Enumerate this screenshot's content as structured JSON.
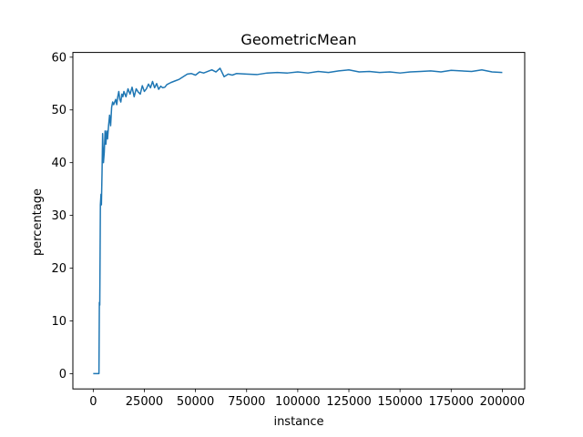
{
  "chart_data": {
    "type": "line",
    "title": "GeometricMean",
    "xlabel": "instance",
    "ylabel": "percentage",
    "xlim": [
      -9950,
      210950
    ],
    "ylim": [
      -2.9,
      60.9
    ],
    "xticks": [
      0,
      25000,
      50000,
      75000,
      100000,
      125000,
      150000,
      175000,
      200000
    ],
    "yticks": [
      0,
      10,
      20,
      30,
      40,
      50,
      60
    ],
    "grid": false,
    "legend": "none",
    "series": [
      {
        "color": "#1f77b4",
        "x": [
          0,
          1500,
          2800,
          3000,
          3200,
          3500,
          3800,
          4000,
          4300,
          4600,
          5000,
          5400,
          5800,
          6200,
          6600,
          7000,
          7500,
          8000,
          8500,
          9000,
          9500,
          10000,
          10500,
          11000,
          11500,
          12000,
          12500,
          13000,
          13500,
          14000,
          14500,
          15000,
          16000,
          17000,
          18000,
          19000,
          20000,
          21000,
          22000,
          23000,
          24000,
          25000,
          26000,
          27000,
          28000,
          29000,
          30000,
          31000,
          32000,
          33000,
          34000,
          35000,
          36000,
          38000,
          40000,
          42000,
          44000,
          46000,
          48000,
          50000,
          52000,
          54000,
          56000,
          58000,
          60000,
          62000,
          64000,
          66000,
          68000,
          70000,
          75000,
          80000,
          85000,
          90000,
          95000,
          100000,
          105000,
          110000,
          115000,
          120000,
          125000,
          130000,
          135000,
          140000,
          145000,
          150000,
          155000,
          160000,
          165000,
          170000,
          175000,
          180000,
          185000,
          190000,
          195000,
          200000
        ],
        "y": [
          0,
          0,
          0,
          13.5,
          13,
          32,
          34,
          32,
          38,
          45.5,
          40,
          42,
          46,
          43.5,
          46,
          44.5,
          47,
          49,
          47,
          50.5,
          51.5,
          51,
          51.5,
          52,
          51,
          52.5,
          53.5,
          52,
          51.5,
          53,
          52.5,
          53.5,
          52.5,
          54,
          53,
          54.3,
          52.5,
          54,
          53.4,
          53,
          54.6,
          53.5,
          54,
          54.9,
          54.2,
          55.4,
          54.2,
          55,
          53.9,
          54.5,
          54.2,
          54.3,
          54.8,
          55.2,
          55.5,
          55.8,
          56.3,
          56.8,
          56.9,
          56.6,
          57.2,
          57,
          57.3,
          57.6,
          57.2,
          57.9,
          56.3,
          56.8,
          56.6,
          56.9,
          56.8,
          56.7,
          57,
          57.1,
          57,
          57.2,
          57,
          57.3,
          57.1,
          57.4,
          57.6,
          57.2,
          57.3,
          57.1,
          57.2,
          57,
          57.2,
          57.3,
          57.4,
          57.2,
          57.5,
          57.4,
          57.3,
          57.6,
          57.2,
          57.1
        ]
      }
    ]
  }
}
